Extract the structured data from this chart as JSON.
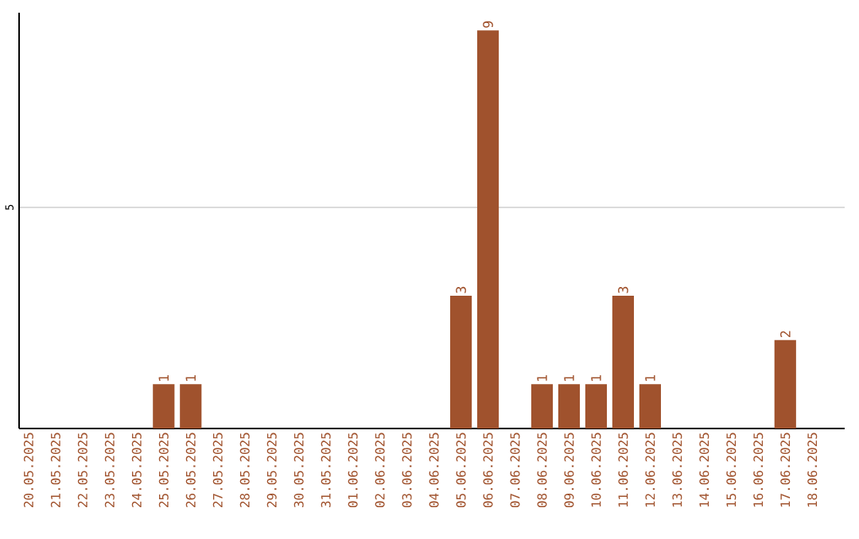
{
  "chart_data": {
    "type": "bar",
    "categories": [
      "20.05.2025",
      "21.05.2025",
      "22.05.2025",
      "23.05.2025",
      "24.05.2025",
      "25.05.2025",
      "26.05.2025",
      "27.05.2025",
      "28.05.2025",
      "29.05.2025",
      "30.05.2025",
      "31.05.2025",
      "01.06.2025",
      "02.06.2025",
      "03.06.2025",
      "04.06.2025",
      "05.06.2025",
      "06.06.2025",
      "07.06.2025",
      "08.06.2025",
      "09.06.2025",
      "10.06.2025",
      "11.06.2025",
      "12.06.2025",
      "13.06.2025",
      "14.06.2025",
      "15.06.2025",
      "16.06.2025",
      "17.06.2025",
      "18.06.2025"
    ],
    "values": [
      0,
      0,
      0,
      0,
      0,
      1,
      1,
      0,
      0,
      0,
      0,
      0,
      0,
      0,
      0,
      0,
      3,
      9,
      0,
      1,
      1,
      1,
      3,
      1,
      0,
      0,
      0,
      0,
      2,
      0
    ],
    "value_labels": [
      null,
      null,
      null,
      null,
      null,
      "1",
      "1",
      null,
      null,
      null,
      null,
      null,
      null,
      null,
      null,
      null,
      "3",
      "9",
      null,
      "1",
      "1",
      "1",
      "3",
      "1",
      null,
      null,
      null,
      null,
      "2",
      null
    ],
    "color": "#a0522d",
    "ylim": [
      0,
      9.4
    ],
    "yticks": [
      5
    ],
    "grid": "y"
  }
}
